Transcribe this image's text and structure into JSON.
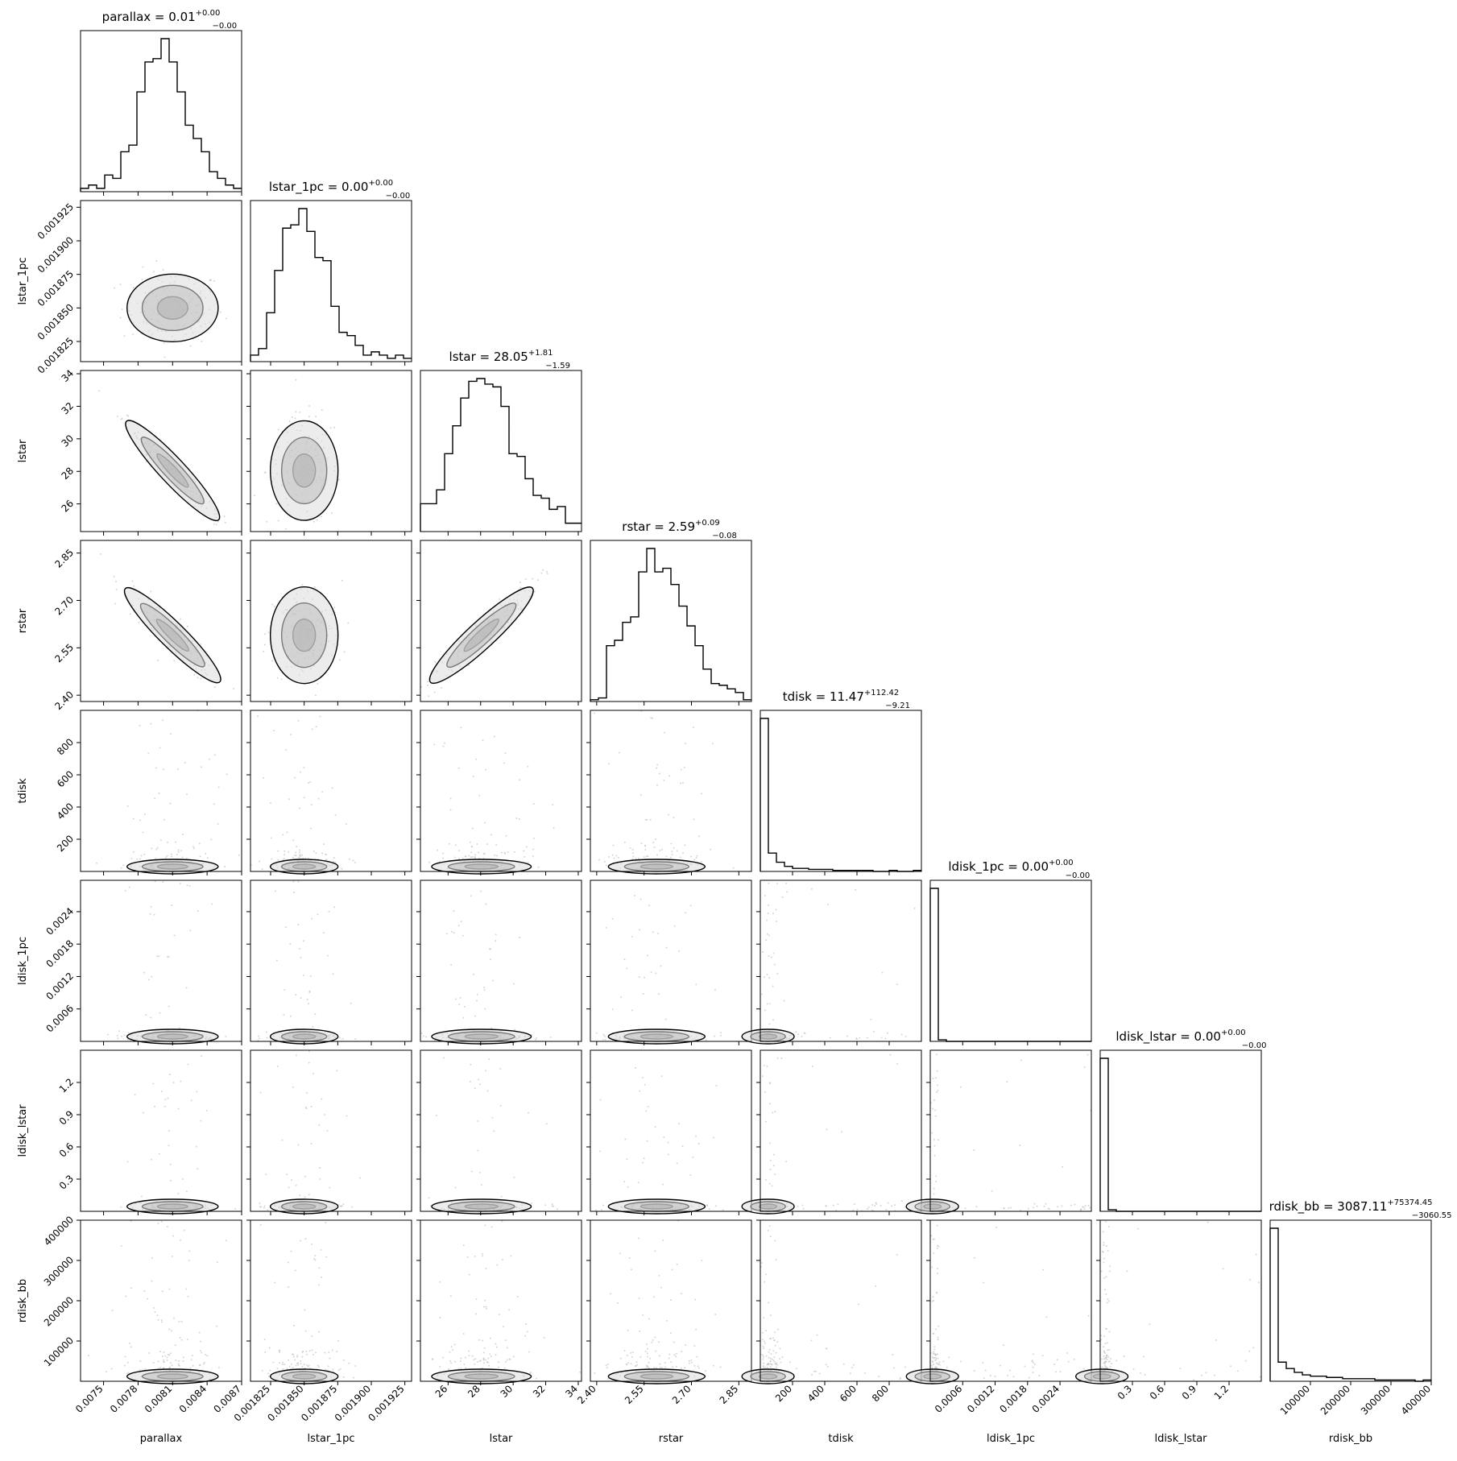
{
  "colors": {
    "axes": "#000000",
    "hist": "#000000",
    "background": "#ffffff",
    "points": "#bbbbbb",
    "fill": "#888888"
  },
  "chart_data": {
    "type": "corner",
    "parameters": [
      {
        "name": "parallax",
        "label": "parallax",
        "range": [
          0.0073,
          0.0087
        ],
        "ticks": [
          0.0075,
          0.0078,
          0.0081,
          0.0084,
          0.0087
        ],
        "tick_labels": [
          "0.0075",
          "0.0078",
          "0.0081",
          "0.0084",
          "0.0087"
        ],
        "center": 0.0081,
        "spread": 0.00022,
        "title_base": "parallax = 0.01",
        "err_plus": "+0.00",
        "err_minus": "−0.00"
      },
      {
        "name": "lstar_1pc",
        "label": "lstar_1pc",
        "range": [
          0.00181,
          0.00193
        ],
        "ticks": [
          0.001825,
          0.00185,
          0.001875,
          0.0019,
          0.001925
        ],
        "tick_labels": [
          "0.001825",
          "0.001850",
          "0.001875",
          "0.001900",
          "0.001925"
        ],
        "center": 0.00185,
        "spread": 1.4e-05,
        "title_base": "lstar_1pc = 0.00",
        "err_plus": "+0.00",
        "err_minus": "−0.00"
      },
      {
        "name": "lstar",
        "label": "lstar",
        "range": [
          24.3,
          34.2
        ],
        "ticks": [
          26,
          28,
          30,
          32,
          34
        ],
        "tick_labels": [
          "26",
          "28",
          "30",
          "32",
          "34"
        ],
        "center": 28.05,
        "spread": 1.7,
        "title_base": "lstar = 28.05",
        "err_plus": "+1.81",
        "err_minus": "−1.59"
      },
      {
        "name": "rstar",
        "label": "rstar",
        "range": [
          2.38,
          2.89
        ],
        "ticks": [
          2.4,
          2.55,
          2.7,
          2.85
        ],
        "tick_labels": [
          "2.40",
          "2.55",
          "2.70",
          "2.85"
        ],
        "center": 2.59,
        "spread": 0.085,
        "title_base": "rstar = 2.59",
        "err_plus": "+0.09",
        "err_minus": "−0.08"
      },
      {
        "name": "tdisk",
        "label": "tdisk",
        "range": [
          0,
          1000
        ],
        "ticks": [
          200,
          400,
          600,
          800
        ],
        "tick_labels": [
          "200",
          "400",
          "600",
          "800"
        ],
        "center": 11.47,
        "spread": 60,
        "title_base": "tdisk = 11.47",
        "err_plus": "+112.42",
        "err_minus": "−9.21"
      },
      {
        "name": "ldisk_1pc",
        "label": "ldisk_1pc",
        "range": [
          0,
          0.00298
        ],
        "ticks": [
          0.0006,
          0.0012,
          0.0018,
          0.0024
        ],
        "tick_labels": [
          "0.0006",
          "0.0012",
          "0.0018",
          "0.0024"
        ],
        "center": 2e-05,
        "spread": 5e-05,
        "title_base": "ldisk_1pc = 0.00",
        "err_plus": "+0.00",
        "err_minus": "−0.00"
      },
      {
        "name": "ldisk_lstar",
        "label": "ldisk_lstar",
        "range": [
          0,
          1.5
        ],
        "ticks": [
          0.3,
          0.6,
          0.9,
          1.2
        ],
        "tick_labels": [
          "0.3",
          "0.6",
          "0.9",
          "1.2"
        ],
        "center": 0.01,
        "spread": 0.02,
        "title_base": "ldisk_lstar = 0.00",
        "err_plus": "+0.00",
        "err_minus": "−0.00"
      },
      {
        "name": "rdisk_bb",
        "label": "rdisk_bb",
        "range": [
          0,
          400000
        ],
        "ticks": [
          100000,
          200000,
          300000,
          400000
        ],
        "tick_labels": [
          "100000",
          "200000",
          "300000",
          "400000"
        ],
        "center": 3087.11,
        "spread": 40000,
        "title_base": "rdisk_bb = 3087.11",
        "err_plus": "+75374.45",
        "err_minus": "−3060.55"
      }
    ],
    "histograms": [
      [
        1,
        2,
        1,
        5,
        4,
        12,
        14,
        30,
        39,
        40,
        46,
        39,
        30,
        20,
        16,
        12,
        6,
        4,
        2,
        1
      ],
      [
        2,
        4,
        15,
        28,
        41,
        42,
        47,
        40,
        32,
        31,
        17,
        9,
        8,
        5,
        2,
        3,
        2,
        1,
        2,
        1
      ],
      [
        10,
        10,
        15,
        28,
        38,
        48,
        54,
        55,
        53,
        52,
        45,
        28,
        27,
        19,
        13,
        12,
        8,
        9,
        3,
        3
      ],
      [
        1,
        2,
        31,
        34,
        44,
        47,
        72,
        85,
        72,
        74,
        65,
        53,
        42,
        31,
        18,
        10,
        9,
        7,
        5,
        1
      ],
      [
        150,
        18,
        9,
        5,
        3,
        3,
        2,
        2,
        2,
        1,
        1,
        1,
        1,
        1,
        0,
        0,
        1,
        0,
        0,
        1
      ],
      [
        100,
        1,
        0,
        0,
        0,
        0,
        0,
        0,
        0,
        0,
        0,
        0,
        0,
        0,
        0,
        0,
        0,
        0,
        0,
        0
      ],
      [
        100,
        1,
        0,
        0,
        0,
        0,
        0,
        0,
        0,
        0,
        0,
        0,
        0,
        0,
        0,
        0,
        0,
        0,
        0,
        0
      ],
      [
        120,
        15,
        10,
        7,
        5,
        4,
        4,
        3,
        3,
        2,
        2,
        2,
        2,
        1,
        1,
        1,
        1,
        1,
        0,
        1
      ]
    ]
  }
}
